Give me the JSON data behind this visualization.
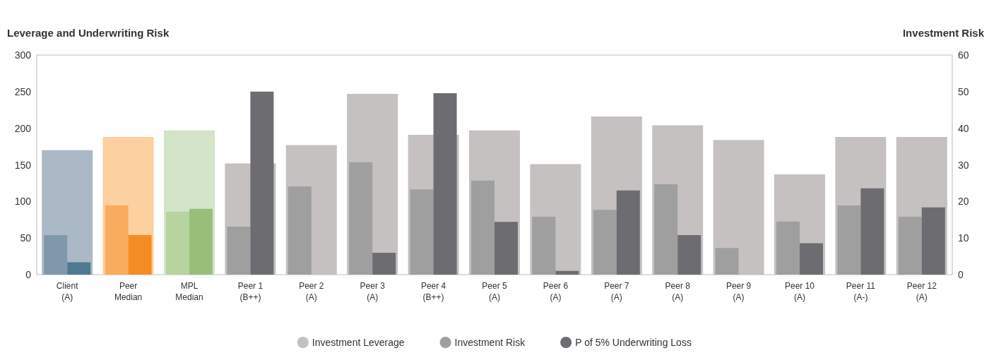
{
  "chart_data": {
    "type": "bar",
    "ylabel": "Leverage and Underwriting Risk",
    "y2label": "Investment Risk",
    "categories": [
      "Client\n(A)",
      "Peer\nMedian",
      "MPL\nMedian",
      "Peer 1\n(B++)",
      "Peer 2\n(A)",
      "Peer 3\n(A)",
      "Peer 4\n(B++)",
      "Peer 5\n(A)",
      "Peer 6\n(A)",
      "Peer 7\n(A)",
      "Peer 8\n(A)",
      "Peer 9\n(A)",
      "Peer 10\n(A)",
      "Peer 11\n(A-)",
      "Peer 12\n(A)"
    ],
    "series": [
      {
        "name": "Investment Leverage",
        "color": "#c4c1c0",
        "colors": [
          "#abb9c6",
          "#fdd09f",
          "#d3e4c8",
          "#c4c1c0",
          "#c4c1c0",
          "#c4c1c0",
          "#c4c1c0",
          "#c4c1c0",
          "#c4c1c0",
          "#c4c1c0",
          "#c4c1c0",
          "#c4c1c0",
          "#c4c1c0",
          "#c4c1c0",
          "#c4c1c0"
        ],
        "values": [
          170,
          188,
          197,
          152,
          177,
          247,
          191,
          197,
          151,
          216,
          204,
          184,
          137,
          188,
          188
        ]
      },
      {
        "name": "Investment Risk",
        "axis": "y2",
        "color": "#a09fa0",
        "colors": [
          "#7f98ab",
          "#f9ab5e",
          "#b6d3a0",
          "#a09fa0",
          "#a09fa0",
          "#a09fa0",
          "#a09fa0",
          "#a09fa0",
          "#a09fa0",
          "#a09fa0",
          "#a09fa0",
          "#a09fa0",
          "#a09fa0",
          "#a09fa0",
          "#a09fa0"
        ],
        "values": [
          10.8,
          18.9,
          17.2,
          13.1,
          24.1,
          30.7,
          23.3,
          25.7,
          15.8,
          17.7,
          24.7,
          7.3,
          14.5,
          18.9,
          15.8
        ]
      },
      {
        "name": "P of 5% Underwriting Loss",
        "color": "#6d6d71",
        "colors": [
          "#4f7891",
          "#f58b24",
          "#98bf7a",
          "#6d6d71",
          "#6d6d71",
          "#6d6d71",
          "#6d6d71",
          "#6d6d71",
          "#6d6d71",
          "#6d6d71",
          "#6d6d71",
          "#6d6d71",
          "#6d6d71",
          "#6d6d71",
          "#6d6d71"
        ],
        "values": [
          17,
          54,
          90,
          250,
          0,
          30,
          248,
          72,
          5,
          115,
          54,
          0,
          43,
          118,
          92
        ]
      }
    ],
    "ylim": [
      0,
      300
    ],
    "yticks": [
      0,
      50,
      100,
      150,
      200,
      250,
      300
    ],
    "y2lim": [
      0,
      60
    ],
    "y2ticks": [
      0,
      10,
      20,
      30,
      40,
      50,
      60
    ],
    "grid": false,
    "legend": "bottom"
  }
}
